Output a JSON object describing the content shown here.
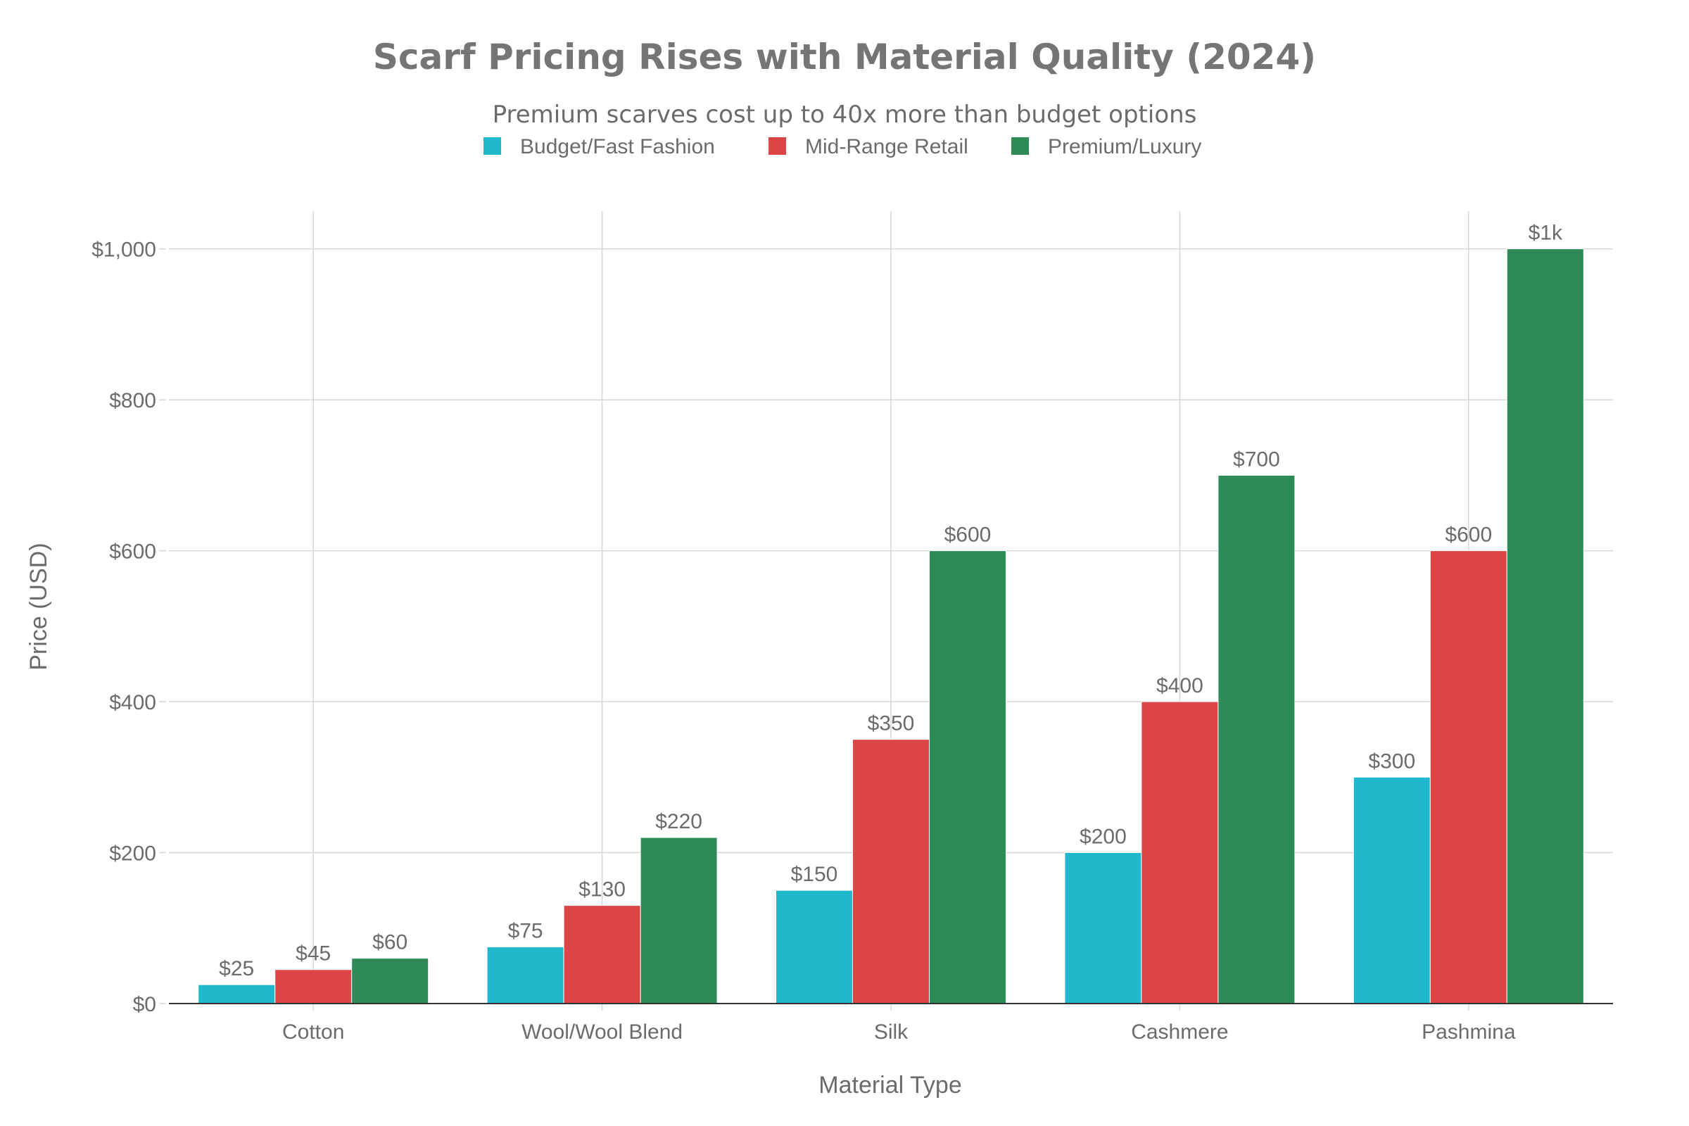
{
  "colors": {
    "budget": "#1fb8cd",
    "mid": "#db4545",
    "premium": "#2e8b57",
    "grid": "#d6d6d6",
    "axis": "#333333",
    "text": "#6b6b6b"
  },
  "chart_data": {
    "type": "bar",
    "title": "Scarf Pricing Rises with Material Quality (2024)",
    "subtitle": "Premium scarves cost up to 40x more than budget options",
    "xlabel": "Material Type",
    "ylabel": "Price (USD)",
    "ylim": [
      0,
      1050
    ],
    "yticks": [
      0,
      200,
      400,
      600,
      800,
      1000
    ],
    "ytick_labels": [
      "$0",
      "$200",
      "$400",
      "$600",
      "$800",
      "$1,000"
    ],
    "grid": true,
    "legend_position": "top-center",
    "categories": [
      "Cotton",
      "Wool/Wool Blend",
      "Silk",
      "Cashmere",
      "Pashmina"
    ],
    "series": [
      {
        "name": "Budget/Fast Fashion",
        "color": "#1fb8cd",
        "values": [
          25,
          75,
          150,
          200,
          300
        ],
        "labels": [
          "$25",
          "$75",
          "$150",
          "$200",
          "$300"
        ]
      },
      {
        "name": "Mid-Range Retail",
        "color": "#db4545",
        "values": [
          45,
          130,
          350,
          400,
          600
        ],
        "labels": [
          "$45",
          "$130",
          "$350",
          "$400",
          "$600"
        ]
      },
      {
        "name": "Premium/Luxury",
        "color": "#2e8b57",
        "values": [
          60,
          220,
          600,
          700,
          1000
        ],
        "labels": [
          "$60",
          "$220",
          "$600",
          "$700",
          "$1k"
        ]
      }
    ]
  }
}
